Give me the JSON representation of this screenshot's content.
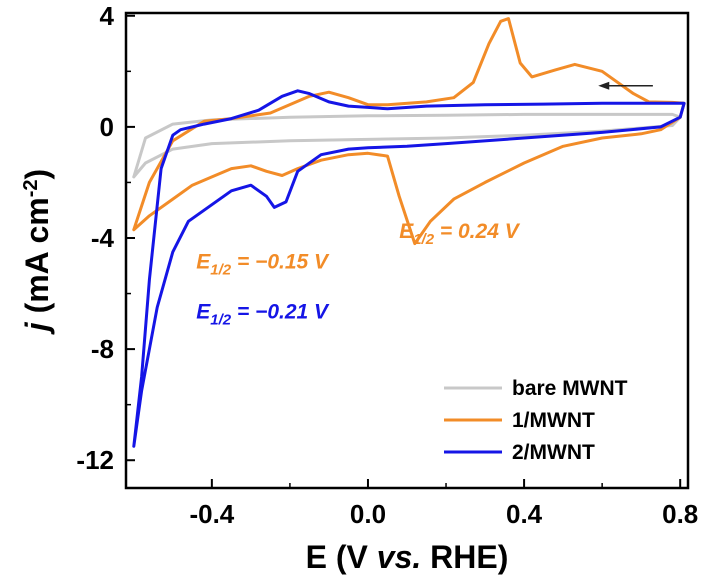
{
  "chart_data": {
    "type": "line",
    "title": "",
    "xlabel": {
      "main": "E (V ",
      "italic": "vs.",
      "rest": " RHE)"
    },
    "ylabel": {
      "j": "j",
      "rest": " (mA cm",
      "sup": "-2",
      "close": ")"
    },
    "xlim": [
      -0.62,
      0.82
    ],
    "ylim": [
      -13,
      4.1
    ],
    "x_ticks": [
      -0.4,
      0.0,
      0.4,
      0.8
    ],
    "x_tick_labels": [
      "-0.4",
      "0.0",
      "0.4",
      "0.8"
    ],
    "y_ticks": [
      4,
      0,
      -4,
      -8,
      -12
    ],
    "y_tick_labels": [
      "4",
      "0",
      "-4",
      "-8",
      "-12"
    ],
    "grid": false,
    "legend_position": "bottom-right",
    "legend": [
      {
        "label": "bare MWNT",
        "color": "#c8c8c8"
      },
      {
        "label": "1/MWNT",
        "color": "#f28c28"
      },
      {
        "label": "2/MWNT",
        "color": "#1515e6"
      }
    ],
    "annotations": [
      {
        "prefix": "E",
        "sub": "1/2",
        "value": " = 0.24 V",
        "color": "#f28c28",
        "x": 0.08,
        "y": -4.0
      },
      {
        "prefix": "E",
        "sub": "1/2",
        "value": " = −0.15 V",
        "color": "#f28c28",
        "x": -0.44,
        "y": -5.1
      },
      {
        "prefix": "E",
        "sub": "1/2",
        "value": " = −0.21 V",
        "color": "#1515e6",
        "x": -0.44,
        "y": -6.9
      }
    ],
    "arrow": {
      "from": [
        0.73,
        1.48
      ],
      "to": [
        0.59,
        1.48
      ],
      "direction": "cathodic scan"
    },
    "series": [
      {
        "name": "bare MWNT",
        "color": "#c8c8c8",
        "points": [
          [
            -0.6,
            -1.8
          ],
          [
            -0.57,
            -1.3
          ],
          [
            -0.5,
            -0.8
          ],
          [
            -0.4,
            -0.6
          ],
          [
            -0.2,
            -0.5
          ],
          [
            0.0,
            -0.45
          ],
          [
            0.2,
            -0.4
          ],
          [
            0.4,
            -0.3
          ],
          [
            0.6,
            -0.15
          ],
          [
            0.78,
            0.05
          ],
          [
            0.8,
            0.35
          ],
          [
            0.78,
            0.45
          ],
          [
            0.6,
            0.45
          ],
          [
            0.4,
            0.45
          ],
          [
            0.2,
            0.42
          ],
          [
            0.0,
            0.4
          ],
          [
            -0.2,
            0.35
          ],
          [
            -0.4,
            0.25
          ],
          [
            -0.5,
            0.1
          ],
          [
            -0.57,
            -0.4
          ],
          [
            -0.6,
            -1.8
          ]
        ]
      },
      {
        "name": "1/MWNT",
        "color": "#f28c28",
        "points": [
          [
            -0.6,
            -3.7
          ],
          [
            -0.56,
            -3.2
          ],
          [
            -0.5,
            -2.6
          ],
          [
            -0.45,
            -2.1
          ],
          [
            -0.4,
            -1.8
          ],
          [
            -0.35,
            -1.5
          ],
          [
            -0.3,
            -1.4
          ],
          [
            -0.26,
            -1.6
          ],
          [
            -0.22,
            -1.75
          ],
          [
            -0.18,
            -1.5
          ],
          [
            -0.12,
            -1.2
          ],
          [
            -0.05,
            -1.0
          ],
          [
            0.0,
            -0.95
          ],
          [
            0.05,
            -1.05
          ],
          [
            0.08,
            -2.5
          ],
          [
            0.12,
            -4.2
          ],
          [
            0.16,
            -3.4
          ],
          [
            0.22,
            -2.6
          ],
          [
            0.3,
            -2.0
          ],
          [
            0.4,
            -1.3
          ],
          [
            0.5,
            -0.7
          ],
          [
            0.6,
            -0.4
          ],
          [
            0.7,
            -0.25
          ],
          [
            0.75,
            -0.1
          ],
          [
            0.8,
            0.35
          ],
          [
            0.81,
            0.85
          ],
          [
            0.78,
            0.88
          ],
          [
            0.72,
            0.9
          ],
          [
            0.68,
            1.2
          ],
          [
            0.6,
            2.0
          ],
          [
            0.53,
            2.25
          ],
          [
            0.48,
            2.05
          ],
          [
            0.42,
            1.8
          ],
          [
            0.39,
            2.3
          ],
          [
            0.36,
            3.9
          ],
          [
            0.34,
            3.8
          ],
          [
            0.31,
            3.0
          ],
          [
            0.27,
            1.6
          ],
          [
            0.22,
            1.05
          ],
          [
            0.15,
            0.9
          ],
          [
            0.05,
            0.8
          ],
          [
            0.0,
            0.8
          ],
          [
            -0.05,
            1.05
          ],
          [
            -0.1,
            1.25
          ],
          [
            -0.15,
            1.1
          ],
          [
            -0.25,
            0.5
          ],
          [
            -0.35,
            0.3
          ],
          [
            -0.42,
            0.2
          ],
          [
            -0.5,
            -0.5
          ],
          [
            -0.56,
            -2.0
          ],
          [
            -0.6,
            -3.7
          ]
        ]
      },
      {
        "name": "2/MWNT",
        "color": "#1515e6",
        "points": [
          [
            -0.6,
            -11.5
          ],
          [
            -0.58,
            -9.5
          ],
          [
            -0.54,
            -6.5
          ],
          [
            -0.5,
            -4.5
          ],
          [
            -0.46,
            -3.4
          ],
          [
            -0.42,
            -3.0
          ],
          [
            -0.35,
            -2.3
          ],
          [
            -0.3,
            -2.1
          ],
          [
            -0.26,
            -2.5
          ],
          [
            -0.24,
            -2.9
          ],
          [
            -0.21,
            -2.7
          ],
          [
            -0.18,
            -1.6
          ],
          [
            -0.12,
            -1.0
          ],
          [
            -0.05,
            -0.8
          ],
          [
            0.0,
            -0.75
          ],
          [
            0.1,
            -0.7
          ],
          [
            0.2,
            -0.6
          ],
          [
            0.4,
            -0.4
          ],
          [
            0.6,
            -0.2
          ],
          [
            0.75,
            0.0
          ],
          [
            0.8,
            0.35
          ],
          [
            0.81,
            0.85
          ],
          [
            0.78,
            0.85
          ],
          [
            0.6,
            0.85
          ],
          [
            0.45,
            0.82
          ],
          [
            0.3,
            0.8
          ],
          [
            0.15,
            0.75
          ],
          [
            0.05,
            0.65
          ],
          [
            0.0,
            0.7
          ],
          [
            -0.05,
            0.75
          ],
          [
            -0.1,
            0.9
          ],
          [
            -0.15,
            1.2
          ],
          [
            -0.18,
            1.3
          ],
          [
            -0.22,
            1.1
          ],
          [
            -0.28,
            0.6
          ],
          [
            -0.35,
            0.3
          ],
          [
            -0.42,
            0.1
          ],
          [
            -0.48,
            -0.1
          ],
          [
            -0.5,
            -0.3
          ],
          [
            -0.53,
            -1.5
          ],
          [
            -0.56,
            -5.5
          ],
          [
            -0.58,
            -9.0
          ],
          [
            -0.6,
            -11.5
          ]
        ]
      }
    ]
  }
}
